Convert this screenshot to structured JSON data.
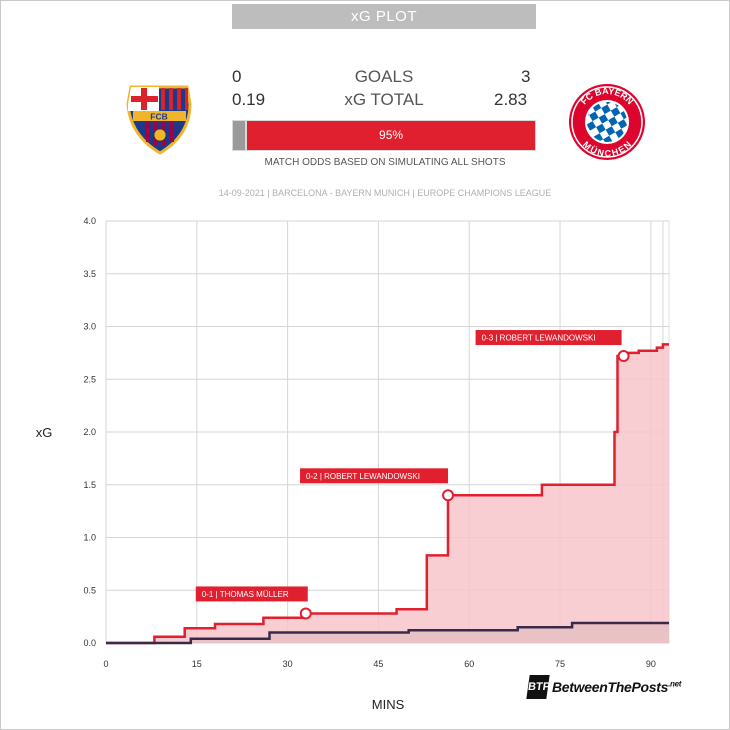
{
  "header": {
    "title": "xG PLOT"
  },
  "scoreboard": {
    "goals_label": "GOALS",
    "xg_label": "xG TOTAL",
    "home_goals": "0",
    "away_goals": "3",
    "home_xg": "0.19",
    "away_xg": "2.83",
    "away_win_pct_label": "95%",
    "away_win_pct": 95,
    "home_win_pct": 1,
    "odds_note": "MATCH ODDS BASED ON SIMULATING ALL SHOTS"
  },
  "match_info": "14-09-2021 | BARCELONA - BAYERN MUNICH | EUROPE CHAMPIONS LEAGUE",
  "teams": {
    "home_badge_text": "FCB",
    "away_badge_top": "FC BAYERN",
    "away_badge_bottom": "MÜNCHEN"
  },
  "colors": {
    "away": "#e0202e",
    "away_fill": "#f7c6ca",
    "home": "#3a2a4a",
    "home_fill": "#e6bfc3",
    "grid": "#d6d6d6"
  },
  "chart_data": {
    "type": "line",
    "title": "",
    "xlabel": "MINS",
    "ylabel": "xG",
    "xlim": [
      0,
      93
    ],
    "ylim": [
      0,
      4.0
    ],
    "x_ticks": [
      0,
      15,
      30,
      45,
      60,
      75,
      90
    ],
    "x_tick_labels": [
      "0",
      "15",
      "30",
      "45",
      "60",
      "75",
      "90"
    ],
    "y_ticks": [
      0,
      0.5,
      1,
      1.5,
      2,
      2.5,
      3,
      3.5,
      4
    ],
    "y_tick_labels": [
      "0.0",
      "0.5",
      "1.0",
      "1.5",
      "2.0",
      "2.5",
      "3.0",
      "3.5",
      "4.0"
    ],
    "grid": true,
    "step": true,
    "series": [
      {
        "team": "away",
        "x": [
          0,
          8,
          13,
          18,
          26,
          33,
          48,
          53,
          56.5,
          72,
          84,
          84.5,
          85.5,
          88,
          91,
          92,
          93
        ],
        "y": [
          0,
          0.06,
          0.14,
          0.18,
          0.24,
          0.28,
          0.32,
          0.83,
          1.4,
          1.5,
          2.0,
          2.72,
          2.75,
          2.77,
          2.8,
          2.83,
          2.83
        ]
      },
      {
        "team": "home",
        "x": [
          0,
          14,
          27,
          50,
          68,
          77,
          93
        ],
        "y": [
          0,
          0.04,
          0.1,
          0.12,
          0.15,
          0.19,
          0.19
        ]
      }
    ],
    "annotations": [
      {
        "text": "0-1 | THOMAS MÜLLER",
        "x": 33,
        "y": 0.28
      },
      {
        "text": "0-2 | ROBERT LEWANDOWSKI",
        "x": 56.5,
        "y": 1.4
      },
      {
        "text": "0-3 | ROBERT LEWANDOWSKI",
        "x": 85.5,
        "y": 2.72
      }
    ]
  },
  "branding": {
    "icon": "BTP",
    "text": "BetweenThePosts",
    "suffix": ".net"
  }
}
